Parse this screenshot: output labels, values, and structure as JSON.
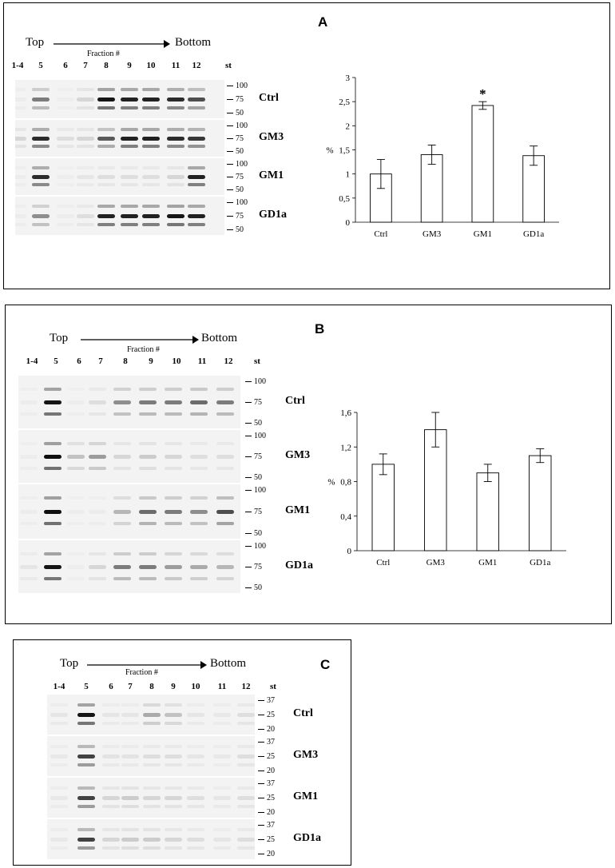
{
  "panels": [
    {
      "letter": "A",
      "direction": {
        "top": "Top",
        "bottom": "Bottom",
        "fraction": "Fraction  #"
      },
      "lanes": [
        "1-4",
        "5",
        "6",
        "7",
        "8",
        "9",
        "10",
        "11",
        "12",
        "st"
      ],
      "markers": [
        "100",
        "75",
        "50"
      ],
      "blots": [
        {
          "condition": "Ctrl",
          "band_intensity": [
            0.05,
            0.55,
            0.02,
            0.2,
            0.95,
            0.9,
            0.9,
            0.85,
            0.7
          ]
        },
        {
          "condition": "GM3",
          "band_intensity": [
            0.2,
            0.85,
            0.15,
            0.2,
            0.65,
            0.9,
            0.9,
            0.85,
            0.8
          ]
        },
        {
          "condition": "GM1",
          "band_intensity": [
            0.05,
            0.85,
            0.03,
            0.1,
            0.15,
            0.15,
            0.15,
            0.2,
            0.9
          ]
        },
        {
          "condition": "GD1a",
          "band_intensity": [
            0.05,
            0.5,
            0.05,
            0.15,
            0.9,
            0.9,
            0.9,
            0.95,
            0.9
          ]
        }
      ]
    },
    {
      "letter": "B",
      "direction": {
        "top": "Top",
        "bottom": "Bottom",
        "fraction": "Fraction  #"
      },
      "lanes": [
        "1-4",
        "5",
        "6",
        "7",
        "8",
        "9",
        "10",
        "11",
        "12",
        "st"
      ],
      "markers": [
        "100",
        "75",
        "50"
      ],
      "blots": [
        {
          "condition": "Ctrl",
          "band_intensity": [
            0.05,
            0.95,
            0.03,
            0.15,
            0.5,
            0.55,
            0.55,
            0.6,
            0.55
          ]
        },
        {
          "condition": "GM3",
          "band_intensity": [
            0.05,
            0.98,
            0.3,
            0.45,
            0.2,
            0.25,
            0.2,
            0.15,
            0.15
          ]
        },
        {
          "condition": "GM1",
          "band_intensity": [
            0.05,
            0.98,
            0.03,
            0.05,
            0.35,
            0.6,
            0.55,
            0.5,
            0.7
          ]
        },
        {
          "condition": "GD1a",
          "band_intensity": [
            0.1,
            0.95,
            0.03,
            0.2,
            0.55,
            0.55,
            0.45,
            0.4,
            0.35
          ]
        }
      ]
    },
    {
      "letter": "C",
      "direction": {
        "top": "Top",
        "bottom": "Bottom",
        "fraction": "Fraction  #"
      },
      "lanes": [
        "1-4",
        "5",
        "6",
        "7",
        "8",
        "9",
        "10",
        "11",
        "12",
        "st"
      ],
      "markers": [
        "37",
        "25",
        "20"
      ],
      "blots": [
        {
          "condition": "Ctrl",
          "band_intensity": [
            0.1,
            0.95,
            0.1,
            0.1,
            0.4,
            0.3,
            0.1,
            0.08,
            0.15
          ]
        },
        {
          "condition": "GM3",
          "band_intensity": [
            0.08,
            0.75,
            0.12,
            0.12,
            0.15,
            0.15,
            0.1,
            0.08,
            0.15
          ]
        },
        {
          "condition": "GM1",
          "band_intensity": [
            0.08,
            0.75,
            0.2,
            0.25,
            0.2,
            0.2,
            0.15,
            0.1,
            0.15
          ]
        },
        {
          "condition": "GD1a",
          "band_intensity": [
            0.08,
            0.75,
            0.2,
            0.25,
            0.25,
            0.2,
            0.15,
            0.1,
            0.15
          ]
        }
      ]
    }
  ],
  "chart_data": [
    {
      "type": "bar",
      "panel": "A",
      "categories": [
        "Ctrl",
        "GM3",
        "GM1",
        "GD1a"
      ],
      "values": [
        1.0,
        1.4,
        2.42,
        1.38
      ],
      "errors": [
        0.3,
        0.2,
        0.08,
        0.2
      ],
      "significance": [
        "",
        "",
        "*",
        ""
      ],
      "ylabel": "%",
      "ylim": [
        0,
        3
      ],
      "yticks": [
        "0",
        "0,5",
        "1",
        "1,5",
        "2",
        "2,5",
        "3"
      ]
    },
    {
      "type": "bar",
      "panel": "B",
      "categories": [
        "Ctrl",
        "GM3",
        "GM1",
        "GD1a"
      ],
      "values": [
        1.0,
        1.4,
        0.9,
        1.1
      ],
      "errors": [
        0.12,
        0.2,
        0.1,
        0.08
      ],
      "ylabel": "%",
      "ylim": [
        0,
        1.6
      ],
      "yticks": [
        "0",
        "0,4",
        "0,8",
        "1,2",
        "1,6"
      ]
    }
  ]
}
